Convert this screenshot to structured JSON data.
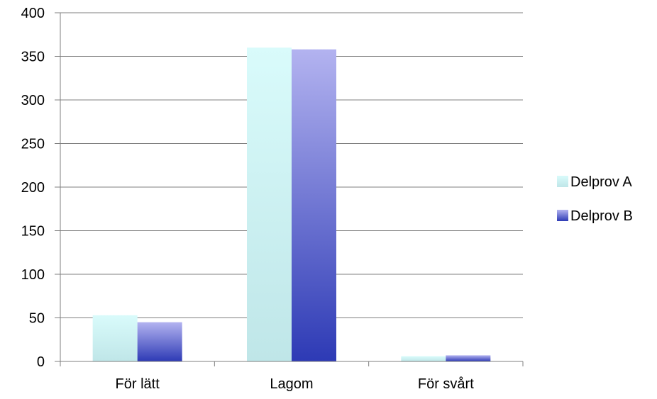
{
  "chart_data": {
    "type": "bar",
    "categories": [
      "För lätt",
      "Lagom",
      "För svårt"
    ],
    "series": [
      {
        "name": "Delprov A",
        "values": [
          53,
          360,
          6
        ]
      },
      {
        "name": "Delprov B",
        "values": [
          45,
          358,
          7
        ]
      }
    ],
    "ylim": [
      0,
      400
    ],
    "yticks": [
      0,
      50,
      100,
      150,
      200,
      250,
      300,
      350,
      400
    ],
    "grid": true,
    "legend_position": "right",
    "colors": {
      "series_a_top": "#d9fbfb",
      "series_a_bottom": "#bfe6e8",
      "series_b_top": "#b3b3f0",
      "series_b_bottom": "#2d3ab5",
      "grid": "#7f7f7f",
      "axis": "#7f7f7f"
    }
  }
}
